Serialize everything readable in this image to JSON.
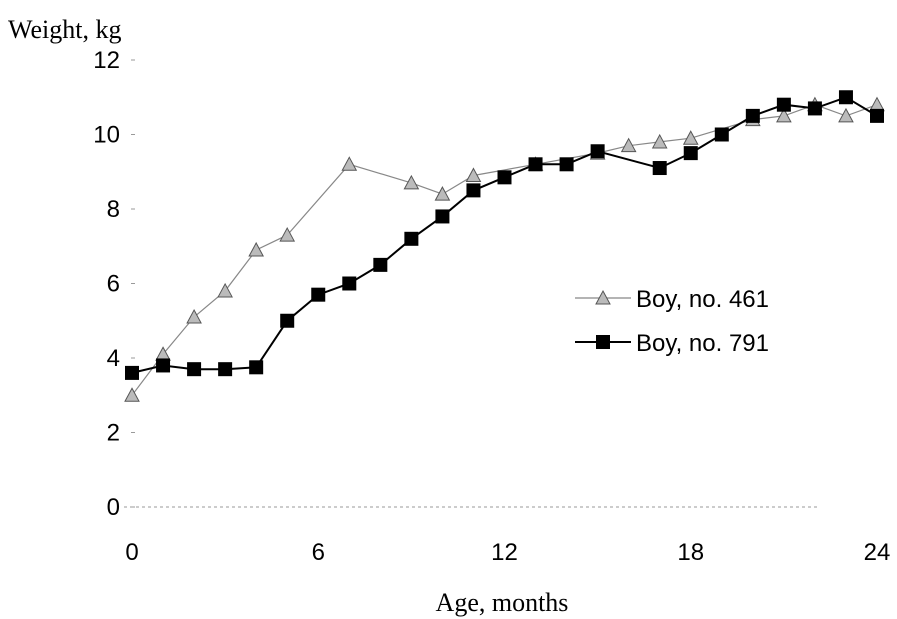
{
  "chart_data": {
    "type": "line",
    "ylabel": "Weight, kg",
    "xlabel": "Age, months",
    "xlim": [
      0,
      24
    ],
    "ylim": [
      0,
      12
    ],
    "x_ticks": [
      "0",
      "6",
      "12",
      "18",
      "24"
    ],
    "y_ticks": [
      "0",
      "2",
      "4",
      "6",
      "8",
      "10",
      "12"
    ],
    "grid": false,
    "legend_position": "right-middle",
    "series": [
      {
        "name": "Boy, no. 461",
        "color": "#888888",
        "marker": "triangle",
        "x": [
          0,
          1,
          2,
          3,
          4,
          5,
          7,
          9,
          10,
          11,
          13,
          15,
          16,
          17,
          18,
          20,
          21,
          22,
          23,
          24
        ],
        "y": [
          3.0,
          4.1,
          5.1,
          5.8,
          6.9,
          7.3,
          9.2,
          8.7,
          8.4,
          8.9,
          9.2,
          9.5,
          9.7,
          9.8,
          9.9,
          10.4,
          10.5,
          10.8,
          10.5,
          10.8
        ]
      },
      {
        "name": "Boy, no. 791",
        "color": "#000000",
        "marker": "square",
        "x": [
          0,
          1,
          2,
          3,
          4,
          5,
          6,
          7,
          8,
          9,
          10,
          11,
          12,
          13,
          14,
          15,
          17,
          18,
          19,
          20,
          21,
          22,
          23,
          24
        ],
        "y": [
          3.6,
          3.8,
          3.7,
          3.7,
          3.75,
          5.0,
          5.7,
          6.0,
          6.5,
          7.2,
          7.8,
          8.5,
          8.85,
          9.2,
          9.2,
          9.55,
          9.1,
          9.5,
          10.0,
          10.5,
          10.8,
          10.7,
          11.0,
          10.5
        ]
      }
    ]
  }
}
